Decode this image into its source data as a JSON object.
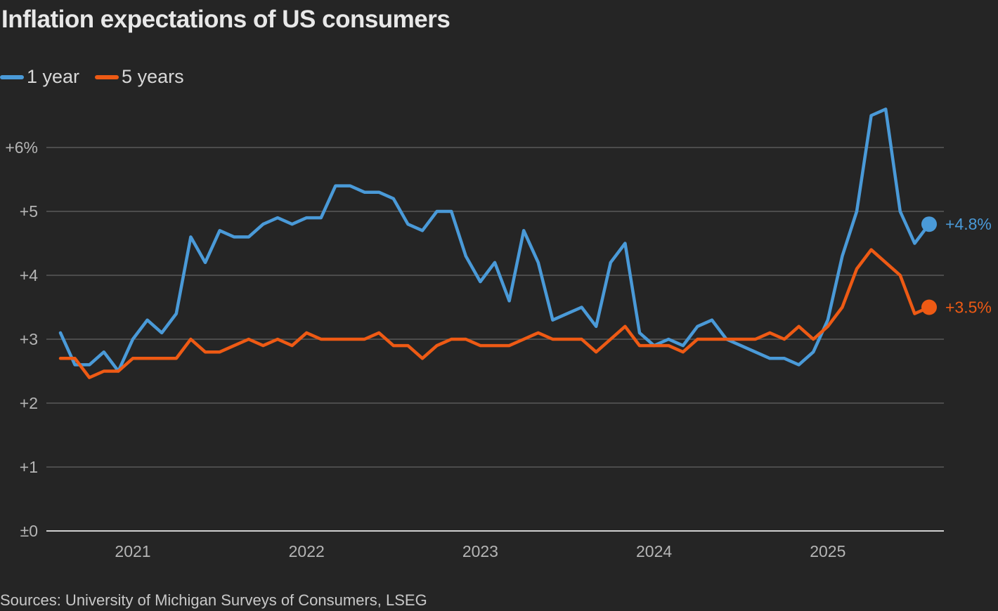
{
  "chart_data": {
    "type": "line",
    "title": "Inflation expectations of US consumers",
    "xlabel": "",
    "ylabel": "",
    "x_start": "2020-08",
    "x_end": "2025-08",
    "x_frequency": "monthly",
    "x_tick_labels": [
      "2021",
      "2022",
      "2023",
      "2024",
      "2025"
    ],
    "y_tick_labels": [
      "±0",
      "+1",
      "+2",
      "+3",
      "+4",
      "+5",
      "+6%"
    ],
    "y_ticks": [
      0,
      1,
      2,
      3,
      4,
      5,
      6
    ],
    "ylim": [
      0,
      6
    ],
    "grid": true,
    "legend_position": "top-left",
    "series": [
      {
        "name": "1 year",
        "color": "#4a9ad8",
        "end_label": "+4.8%",
        "values": [
          3.1,
          2.6,
          2.6,
          2.8,
          2.5,
          3.0,
          3.3,
          3.1,
          3.4,
          4.6,
          4.2,
          4.7,
          4.6,
          4.6,
          4.8,
          4.9,
          4.8,
          4.9,
          4.9,
          5.4,
          5.4,
          5.3,
          5.3,
          5.2,
          4.8,
          4.7,
          5.0,
          5.0,
          4.3,
          3.9,
          4.2,
          3.6,
          4.7,
          4.2,
          3.3,
          3.4,
          3.5,
          3.2,
          4.2,
          4.5,
          3.1,
          2.9,
          3.0,
          2.9,
          3.2,
          3.3,
          3.0,
          2.9,
          2.8,
          2.7,
          2.7,
          2.6,
          2.8,
          3.3,
          4.3,
          5.0,
          6.5,
          6.6,
          5.0,
          4.5,
          4.8
        ]
      },
      {
        "name": "5 years",
        "color": "#ee5a14",
        "end_label": "+3.5%",
        "values": [
          2.7,
          2.7,
          2.4,
          2.5,
          2.5,
          2.7,
          2.7,
          2.7,
          2.7,
          3.0,
          2.8,
          2.8,
          2.9,
          3.0,
          2.9,
          3.0,
          2.9,
          3.1,
          3.0,
          3.0,
          3.0,
          3.0,
          3.1,
          2.9,
          2.9,
          2.7,
          2.9,
          3.0,
          3.0,
          2.9,
          2.9,
          2.9,
          3.0,
          3.1,
          3.0,
          3.0,
          3.0,
          2.8,
          3.0,
          3.2,
          2.9,
          2.9,
          2.9,
          2.8,
          3.0,
          3.0,
          3.0,
          3.0,
          3.0,
          3.1,
          3.0,
          3.2,
          3.0,
          3.2,
          3.5,
          4.1,
          4.4,
          4.2,
          4.0,
          3.4,
          3.5
        ]
      }
    ],
    "source": "Sources: University of Michigan Surveys of Consumers, LSEG"
  },
  "colors": {
    "background": "#252525",
    "gridline": "#5a5a5a",
    "axis": "#d0d0d0"
  }
}
